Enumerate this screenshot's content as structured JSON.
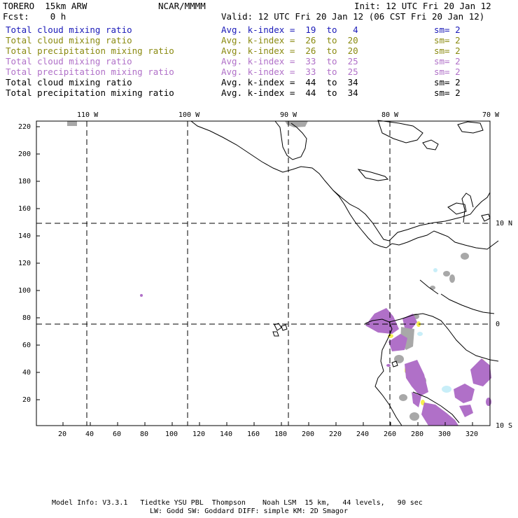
{
  "header": {
    "model": "TORERO  15km ARW",
    "center": "NCAR/MMMM",
    "init": "Init: 12 UTC Fri 20 Jan 12",
    "fcst": "Fcst:    0 h",
    "valid": "Valid: 12 UTC Fri 20 Jan 12 (06 CST Fri 20 Jan 12)"
  },
  "legend": [
    {
      "field": "Total cloud mixing ratio",
      "kindex": "Avg. k-index =  19  to   4",
      "sm": "sm= 2",
      "color": "#1a1ab8"
    },
    {
      "field": "Total cloud mixing ratio",
      "kindex": "Avg. k-index =  26  to  20",
      "sm": "sm= 2",
      "color": "#8a8a10"
    },
    {
      "field": "Total precipitation mixing ratio",
      "kindex": "Avg. k-index =  26  to  20",
      "sm": "sm= 2",
      "color": "#8a8a10"
    },
    {
      "field": "Total cloud mixing ratio",
      "kindex": "Avg. k-index =  33  to  25",
      "sm": "sm= 2",
      "color": "#b070c8"
    },
    {
      "field": "Total precipitation mixing ratio",
      "kindex": "Avg. k-index =  33  to  25",
      "sm": "sm= 2",
      "color": "#b070c8"
    },
    {
      "field": "Total cloud mixing ratio",
      "kindex": "Avg. k-index =  44  to  34",
      "sm": "sm= 2",
      "color": "#000000"
    },
    {
      "field": "Total precipitation mixing ratio",
      "kindex": "Avg. k-index =  44  to  34",
      "sm": "sm= 2",
      "color": "#000000"
    }
  ],
  "map": {
    "lon_labels": [
      "110 W",
      "100 W",
      "90 W",
      "80 W",
      "70 W"
    ],
    "lat_labels": [
      "10 N",
      "0",
      "10 S"
    ],
    "y_ticks": [
      "220",
      "200",
      "180",
      "160",
      "140",
      "120",
      "100",
      "80",
      "60",
      "40",
      "20"
    ],
    "x_ticks": [
      "20",
      "40",
      "60",
      "80",
      "100",
      "120",
      "140",
      "160",
      "180",
      "200",
      "220",
      "240",
      "260",
      "280",
      "300",
      "320"
    ],
    "colors": {
      "purple": "#b070c8",
      "gray": "#a8a8a8",
      "yellow": "#f5ef50",
      "cyan": "#c8eef8"
    }
  },
  "footer": {
    "line1": "Model Info: V3.3.1   Tiedtke YSU PBL  Thompson    Noah LSM  15 km,   44 levels,   90 sec",
    "line2": "LW: Godd SW: Goddard DIFF: simple KM: 2D Smagor"
  }
}
